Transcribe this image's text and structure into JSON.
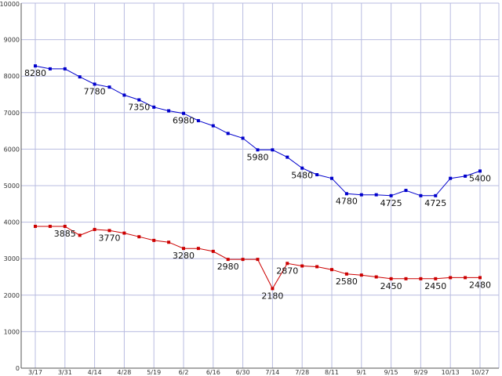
{
  "chart_data": {
    "type": "line",
    "title": "",
    "xlabel": "",
    "ylabel": "",
    "ylim": [
      0,
      10000
    ],
    "y_ticks": [
      0,
      1000,
      2000,
      3000,
      4000,
      5000,
      6000,
      7000,
      8000,
      9000,
      10000
    ],
    "grid": true,
    "colors": {
      "grid": "#b8bce0",
      "axis": "#555555",
      "background": "#ffffff"
    },
    "x_ticks": [
      "3/17",
      "3/31",
      "4/14",
      "4/28",
      "5/19",
      "6/2",
      "6/16",
      "6/30",
      "7/14",
      "7/28",
      "8/11",
      "9/1",
      "9/15",
      "9/29",
      "10/13",
      "10/27"
    ],
    "series": [
      {
        "color": "#0000cc",
        "values": [
          8280,
          8200,
          8200,
          7980,
          7780,
          7700,
          7480,
          7350,
          7150,
          7050,
          6980,
          6780,
          6640,
          6430,
          6300,
          5980,
          5980,
          5780,
          5480,
          5300,
          5200,
          4780,
          4750,
          4750,
          4725,
          4870,
          4725,
          4725,
          5200,
          5260,
          5400
        ],
        "labels": [
          {
            "index": 0,
            "text": "8280"
          },
          {
            "index": 4,
            "text": "7780"
          },
          {
            "index": 7,
            "text": "7350"
          },
          {
            "index": 10,
            "text": "6980"
          },
          {
            "index": 15,
            "text": "5980"
          },
          {
            "index": 18,
            "text": "5480"
          },
          {
            "index": 21,
            "text": "4780"
          },
          {
            "index": 24,
            "text": "4725"
          },
          {
            "index": 27,
            "text": "4725"
          },
          {
            "index": 30,
            "text": "5400"
          }
        ]
      },
      {
        "color": "#cc0000",
        "values": [
          3885,
          3885,
          3885,
          3640,
          3800,
          3770,
          3700,
          3600,
          3500,
          3450,
          3280,
          3280,
          3200,
          2980,
          2980,
          2980,
          2180,
          2870,
          2800,
          2780,
          2700,
          2580,
          2550,
          2500,
          2450,
          2450,
          2450,
          2450,
          2480,
          2480,
          2480
        ],
        "labels": [
          {
            "index": 2,
            "text": "3885"
          },
          {
            "index": 5,
            "text": "3770"
          },
          {
            "index": 10,
            "text": "3280"
          },
          {
            "index": 13,
            "text": "2980"
          },
          {
            "index": 16,
            "text": "2180"
          },
          {
            "index": 17,
            "text": "2870"
          },
          {
            "index": 21,
            "text": "2580"
          },
          {
            "index": 24,
            "text": "2450"
          },
          {
            "index": 27,
            "text": "2450"
          },
          {
            "index": 30,
            "text": "2480"
          }
        ]
      }
    ]
  }
}
